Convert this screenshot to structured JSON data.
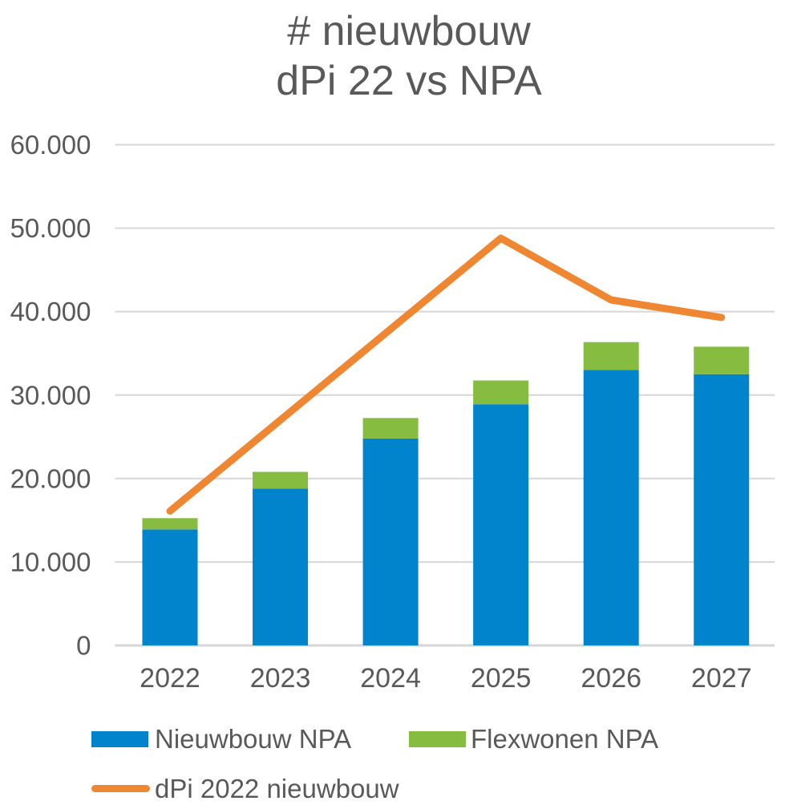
{
  "chart": {
    "title_line1": "# nieuwbouw",
    "title_line2": "dPi 22 vs NPA"
  },
  "chart_data": {
    "type": "bar+line",
    "title": "# nieuwbouw dPi 22 vs NPA",
    "categories": [
      "2022",
      "2023",
      "2024",
      "2025",
      "2026",
      "2027"
    ],
    "series": [
      {
        "name": "Nieuwbouw NPA",
        "type": "bar",
        "stack": true,
        "color": "#0284cd",
        "values": [
          13900,
          18800,
          24800,
          28900,
          33000,
          32500
        ]
      },
      {
        "name": "Flexwonen NPA",
        "type": "bar",
        "stack": true,
        "color": "#86bc40",
        "values": [
          1350,
          2000,
          2450,
          2850,
          3350,
          3300
        ]
      },
      {
        "name": "dPi 2022 nieuwbouw",
        "type": "line",
        "color": "#ef8632",
        "values": [
          16100,
          27000,
          37900,
          48800,
          41400,
          39300
        ]
      }
    ],
    "ylim": [
      0,
      60000
    ],
    "y_ticks": [
      {
        "value": 0,
        "label": "0"
      },
      {
        "value": 10000,
        "label": "10.000"
      },
      {
        "value": 20000,
        "label": "20.000"
      },
      {
        "value": 30000,
        "label": "30.000"
      },
      {
        "value": 40000,
        "label": "40.000"
      },
      {
        "value": 50000,
        "label": "50.000"
      },
      {
        "value": 60000,
        "label": "60.000"
      }
    ],
    "grid": "horizontal",
    "legend_position": "bottom",
    "colors": {
      "text": "#595959",
      "gridline": "#d9d9d9",
      "axis_line": "#d6d6d6",
      "background": "#ffffff"
    }
  },
  "legend": {
    "items": [
      {
        "label": "Nieuwbouw NPA",
        "color": "#0284cd",
        "marker": "rect"
      },
      {
        "label": "Flexwonen NPA",
        "color": "#86bc40",
        "marker": "rect"
      },
      {
        "label": "dPi 2022 nieuwbouw",
        "color": "#ef8632",
        "marker": "line"
      }
    ]
  }
}
